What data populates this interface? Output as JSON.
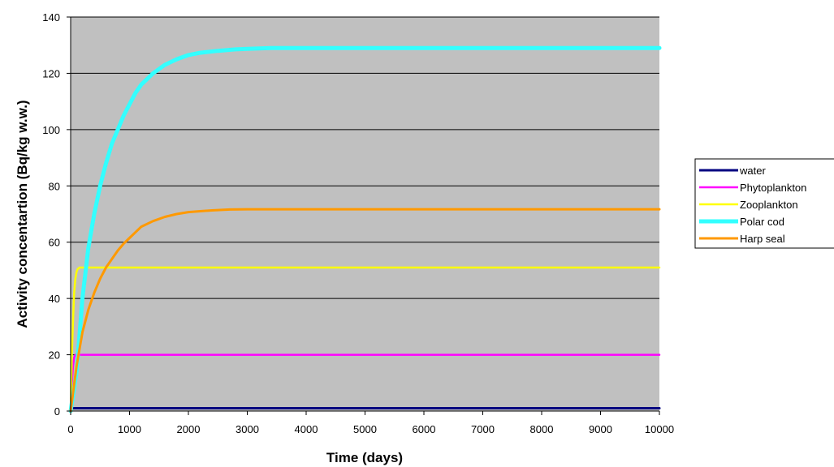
{
  "chart_data": {
    "type": "line",
    "title": "",
    "xlabel": "Time (days)",
    "ylabel": "Activity concentartion (Bq/kg w.w.)",
    "xlim": [
      0,
      10000
    ],
    "ylim": [
      0,
      140
    ],
    "xticks": [
      "0",
      "1000",
      "2000",
      "3000",
      "4000",
      "5000",
      "6000",
      "7000",
      "8000",
      "9000",
      "10000"
    ],
    "yticks": [
      "0",
      "20",
      "40",
      "60",
      "80",
      "100",
      "120",
      "140"
    ],
    "grid": "horizontal",
    "plot_background": "#c0c0c0",
    "legend_position": "right",
    "series": [
      {
        "name": "water",
        "color": "#000080",
        "x": [
          0,
          10000
        ],
        "y": [
          1,
          1
        ]
      },
      {
        "name": "Phytoplankton",
        "color": "#ff00ff",
        "x": [
          0,
          20,
          40,
          60,
          80,
          100,
          150,
          10000
        ],
        "y": [
          0,
          10,
          16,
          19,
          20,
          20,
          20,
          20
        ]
      },
      {
        "name": "Zooplankton",
        "color": "#ffff00",
        "x": [
          0,
          20,
          40,
          60,
          80,
          100,
          120,
          150,
          200,
          10000
        ],
        "y": [
          0,
          20,
          32,
          42,
          47,
          49.5,
          50.5,
          51,
          51,
          51
        ]
      },
      {
        "name": "Polar cod",
        "color": "#33ffff",
        "x": [
          0,
          100,
          200,
          300,
          400,
          500,
          600,
          700,
          800,
          900,
          1000,
          1100,
          1200,
          1400,
          1600,
          1800,
          2000,
          2200,
          2500,
          2800,
          3000,
          3400,
          4000,
          10000
        ],
        "y": [
          0,
          14,
          40,
          58,
          70,
          80,
          88,
          95,
          100,
          105,
          109,
          113,
          116,
          120,
          123,
          125,
          126.5,
          127.3,
          128,
          128.5,
          128.7,
          129,
          129,
          129
        ]
      },
      {
        "name": "Harp seal",
        "color": "#ff9900",
        "x": [
          0,
          100,
          200,
          300,
          400,
          500,
          600,
          700,
          800,
          900,
          1000,
          1200,
          1400,
          1600,
          1800,
          2000,
          2200,
          2400,
          2700,
          3000,
          10000
        ],
        "y": [
          0,
          16,
          28,
          36,
          42,
          47,
          51,
          54,
          57,
          59.5,
          61.5,
          65.5,
          67.5,
          69,
          70,
          70.7,
          71,
          71.3,
          71.6,
          71.7,
          71.7
        ]
      }
    ]
  }
}
